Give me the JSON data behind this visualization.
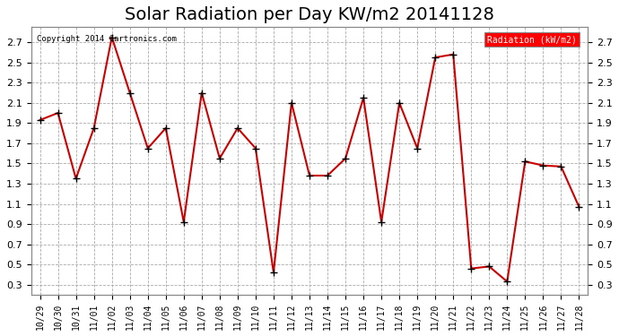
{
  "title": "Solar Radiation per Day KW/m2 20141128",
  "copyright_text": "Copyright 2014 Cartronics.com",
  "legend_label": "Radiation (kW/m2)",
  "x_labels": [
    "10/29",
    "10/30",
    "10/31",
    "11/01",
    "11/02",
    "11/03",
    "11/04",
    "11/05",
    "11/06",
    "11/07",
    "11/08",
    "11/09",
    "11/10",
    "11/11",
    "11/12",
    "11/13",
    "11/14",
    "11/15",
    "11/16",
    "11/17",
    "11/18",
    "11/19",
    "11/20",
    "11/21",
    "11/22",
    "11/23",
    "11/24",
    "11/25",
    "11/26",
    "11/27",
    "11/28"
  ],
  "y_values": [
    1.93,
    2.0,
    1.35,
    1.85,
    2.75,
    2.2,
    1.65,
    1.85,
    0.92,
    2.2,
    1.55,
    1.85,
    1.65,
    0.42,
    2.1,
    1.38,
    1.38,
    1.55,
    2.15,
    0.92,
    2.1,
    1.65,
    2.55,
    2.58,
    0.46,
    0.48,
    0.33,
    1.52,
    1.48,
    1.47,
    1.07
  ],
  "line_color": "#cc0000",
  "marker": "+",
  "marker_color": "#000000",
  "marker_size": 6,
  "line_width": 1.5,
  "ylim": [
    0.2,
    2.85
  ],
  "yticks": [
    0.3,
    0.5,
    0.7,
    0.9,
    1.1,
    1.3,
    1.5,
    1.7,
    1.9,
    2.1,
    2.3,
    2.5,
    2.7
  ],
  "background_color": "#ffffff",
  "grid_color": "#aaaaaa",
  "title_fontsize": 14,
  "tick_fontsize": 7,
  "legend_bg": "#ff0000",
  "legend_text_color": "#ffffff"
}
